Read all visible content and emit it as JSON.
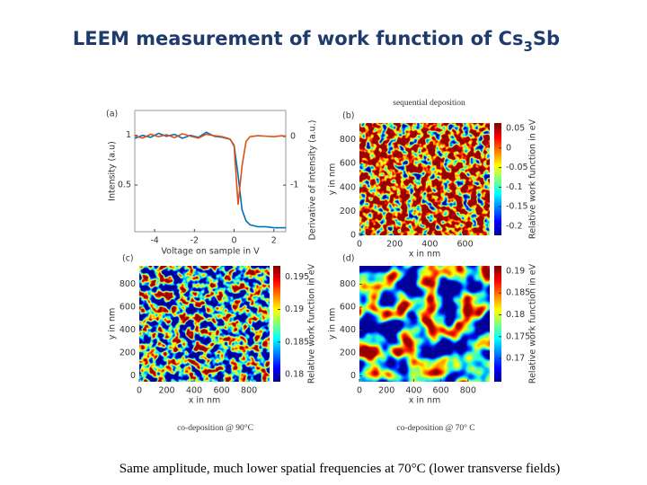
{
  "title": {
    "text": "LEEM measurement of work function of Cs",
    "subscript": "3",
    "suffix": "Sb"
  },
  "chart_data": [
    {
      "type": "line",
      "label": "(a)",
      "xlabel": "Voltage on sample in V",
      "ylabel": "Intensity (a.u)",
      "y2label": "Derivative of Intensity (a.u.)",
      "x": [
        -5,
        -4.6,
        -4.2,
        -3.8,
        -3.4,
        -3,
        -2.6,
        -2.2,
        -1.8,
        -1.4,
        -1,
        -0.6,
        -0.2,
        0,
        0.2,
        0.4,
        0.6,
        0.8,
        1.2,
        1.6,
        2,
        2.4,
        2.6
      ],
      "xlim": [
        -5,
        2.6
      ],
      "xticks": [
        -4,
        -2,
        0,
        2
      ],
      "ylim": [
        0.03,
        1.25
      ],
      "yticks": [
        0.5,
        1
      ],
      "y2lim": [
        -1.96,
        0.54
      ],
      "y2ticks": [
        -1,
        0
      ],
      "series": [
        {
          "color": "#0072bd",
          "values": [
            0.97,
            1.0,
            0.98,
            1.02,
            0.99,
            1.01,
            0.97,
            1.0,
            0.98,
            1.03,
            0.99,
            0.98,
            0.96,
            0.9,
            0.6,
            0.25,
            0.14,
            0.1,
            0.08,
            0.08,
            0.07,
            0.07,
            0.07
          ]
        },
        {
          "color": "#d95319",
          "axis": "y2",
          "values": [
            0.02,
            -0.03,
            0.05,
            0.0,
            0.04,
            -0.02,
            0.06,
            0.01,
            -0.03,
            0.05,
            0.02,
            0.0,
            -0.05,
            -0.2,
            -1.4,
            -0.6,
            -0.1,
            0,
            0.02,
            0.01,
            0.0,
            0.02,
            0.01
          ]
        }
      ]
    },
    {
      "type": "heatmap",
      "label": "(b)",
      "title": "sequential deposition",
      "xlabel": "x in nm",
      "ylabel": "y in nm",
      "clabel": "Relative work function in eV",
      "xlim": [
        0,
        740
      ],
      "xticks": [
        0,
        200,
        400,
        600
      ],
      "ylim": [
        0,
        940
      ],
      "yticks": [
        0,
        200,
        400,
        600,
        800
      ],
      "clim": [
        -0.223,
        0.0638
      ],
      "cticks": [
        0.05,
        0,
        -0.05,
        -0.1,
        -0.15,
        -0.2
      ]
    },
    {
      "type": "heatmap",
      "label": "(c)",
      "caption": "co-deposition @ 90°C",
      "xlabel": "x in nm",
      "ylabel": "y in nm",
      "clabel": "Relative work function in eV",
      "xlim": [
        0,
        950
      ],
      "xticks": [
        0,
        200,
        400,
        600,
        800
      ],
      "ylim": [
        -50,
        960
      ],
      "yticks": [
        0,
        200,
        400,
        600,
        800
      ],
      "clim": [
        0.1789,
        0.1967
      ],
      "cticks": [
        0.195,
        0.19,
        0.185,
        0.18
      ]
    },
    {
      "type": "heatmap",
      "label": "(d)",
      "caption": "co-deposition @ 70° C",
      "xlabel": "x in nm",
      "ylabel": "y in nm",
      "clabel": "Relative work function in eV",
      "xlim": [
        0,
        960
      ],
      "xticks": [
        0,
        200,
        400,
        600,
        800
      ],
      "ylim": [
        -50,
        960
      ],
      "yticks": [
        0,
        200,
        400,
        600,
        800
      ],
      "clim": [
        0.1647,
        0.1912
      ],
      "cticks": [
        0.19,
        0.185,
        0.18,
        0.175,
        0.17
      ]
    }
  ],
  "footer": "Same amplitude, much lower spatial frequencies at 70°C (lower transverse fields)"
}
